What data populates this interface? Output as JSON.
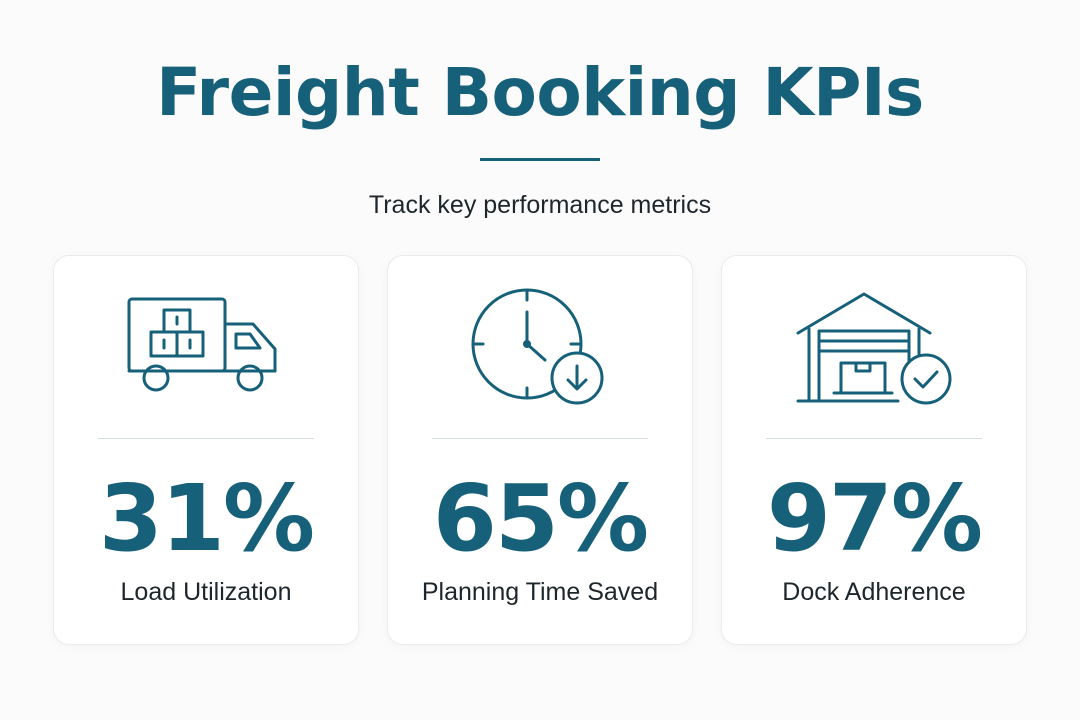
{
  "header": {
    "title": "Freight Booking KPIs",
    "subtitle": "Track key performance metrics"
  },
  "colors": {
    "accent": "#16607a",
    "text": "#1d262b",
    "background": "#fbfbfb",
    "card": "#ffffff"
  },
  "kpis": [
    {
      "icon": "delivery-truck-icon",
      "value": "31%",
      "label": "Load Utilization"
    },
    {
      "icon": "clock-download-icon",
      "value": "65%",
      "label": "Planning Time Saved"
    },
    {
      "icon": "warehouse-check-icon",
      "value": "97%",
      "label": "Dock Adherence"
    }
  ]
}
